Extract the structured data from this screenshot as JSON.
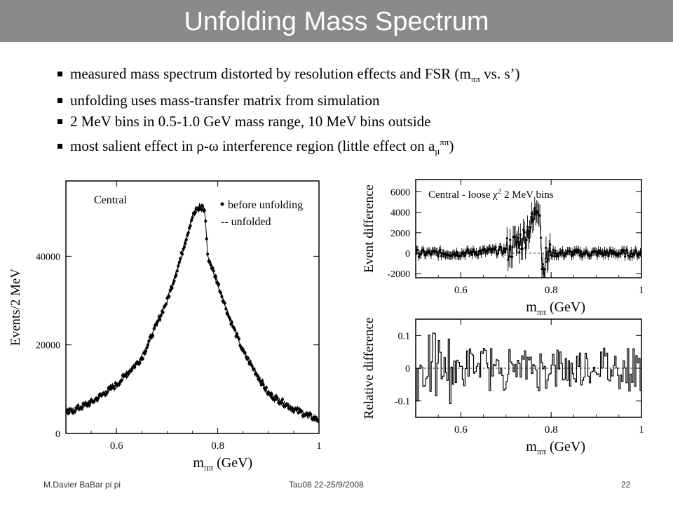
{
  "title": "Unfolding Mass Spectrum",
  "bullets": [
    {
      "pre": "measured mass spectrum distorted by resolution effects and FSR (m",
      "sub": "ππ",
      "post": " vs. s’)"
    },
    {
      "pre": "unfolding uses mass-transfer matrix from simulation"
    },
    {
      "pre": "2 MeV bins in 0.5-1.0 GeV mass range, 10 MeV bins outside"
    },
    {
      "pre": "most salient effect in ρ-ω interference region (little effect on a",
      "sub": "μ",
      "sup": "ππ",
      "post": ")"
    }
  ],
  "footer": {
    "left": "M.Davier    BaBar pi pi",
    "center": "Tau08  22-25/9/2008",
    "page": "22"
  },
  "chart_data": [
    {
      "type": "line",
      "panel_label": "Central",
      "xlabel_base": "m",
      "xlabel_sub": "ππ",
      "xlabel_unit": " (GeV)",
      "ylabel": "Events/2 MeV",
      "xlim": [
        0.5,
        1.0
      ],
      "ylim": [
        0,
        57000
      ],
      "xticks": [
        "0.6",
        "0.8",
        "1"
      ],
      "yticks": [
        "0",
        "20000",
        "40000"
      ],
      "legend": [
        "before unfolding",
        "-- unfolded"
      ],
      "series": [
        {
          "name": "before unfolding",
          "x": [
            0.5,
            0.55,
            0.6,
            0.65,
            0.7,
            0.72,
            0.74,
            0.75,
            0.76,
            0.77,
            0.775,
            0.78,
            0.79,
            0.8,
            0.82,
            0.85,
            0.9,
            0.95,
            1.0
          ],
          "values": [
            4500,
            7000,
            11000,
            17000,
            30000,
            37000,
            45000,
            49000,
            50500,
            51000,
            50000,
            40000,
            37000,
            34000,
            27000,
            18500,
            9000,
            5500,
            3000
          ]
        },
        {
          "name": "unfolded",
          "x": [
            0.5,
            0.55,
            0.6,
            0.65,
            0.7,
            0.72,
            0.74,
            0.75,
            0.76,
            0.77,
            0.775,
            0.78,
            0.79,
            0.8,
            0.82,
            0.85,
            0.9,
            0.95,
            1.0
          ],
          "values": [
            4500,
            7000,
            11000,
            17000,
            30000,
            37000,
            45000,
            49500,
            51500,
            52000,
            50000,
            40000,
            37000,
            34000,
            27000,
            18500,
            9000,
            5500,
            3000
          ]
        }
      ]
    },
    {
      "type": "line",
      "panel_label": "Central - loose χ",
      "panel_label_sup": "2",
      "panel_label_post": " 2 MeV bins",
      "xlabel_base": "m",
      "xlabel_sub": "ππ",
      "xlabel_unit": " (GeV)",
      "ylabel": "Event difference",
      "xlim": [
        0.5,
        1.0
      ],
      "ylim": [
        -2400,
        7200
      ],
      "xticks": [
        "0.6",
        "0.8",
        "1"
      ],
      "yticks": [
        "-2000",
        "0",
        "2000",
        "4000",
        "6000"
      ],
      "series": [
        {
          "x": [
            0.5,
            0.6,
            0.7,
            0.72,
            0.74,
            0.75,
            0.76,
            0.77,
            0.775,
            0.78,
            0.79,
            0.8,
            0.9,
            1.0
          ],
          "values": [
            0,
            0,
            300,
            800,
            1500,
            2500,
            3000,
            5000,
            4500,
            -1500,
            -500,
            0,
            0,
            0
          ]
        }
      ]
    },
    {
      "type": "line",
      "xlabel_base": "m",
      "xlabel_sub": "ππ",
      "xlabel_unit": " (GeV)",
      "ylabel": "Relative difference",
      "xlim": [
        0.5,
        1.0
      ],
      "ylim": [
        -0.15,
        0.15
      ],
      "xticks": [
        "0.6",
        "0.8",
        "1"
      ],
      "yticks": [
        "-0.1",
        "0",
        "0.1"
      ],
      "series": [
        {
          "x": [
            0.5,
            0.6,
            0.7,
            0.8,
            0.9,
            1.0
          ],
          "values": [
            0,
            0,
            0,
            0,
            0,
            0
          ]
        }
      ]
    }
  ]
}
